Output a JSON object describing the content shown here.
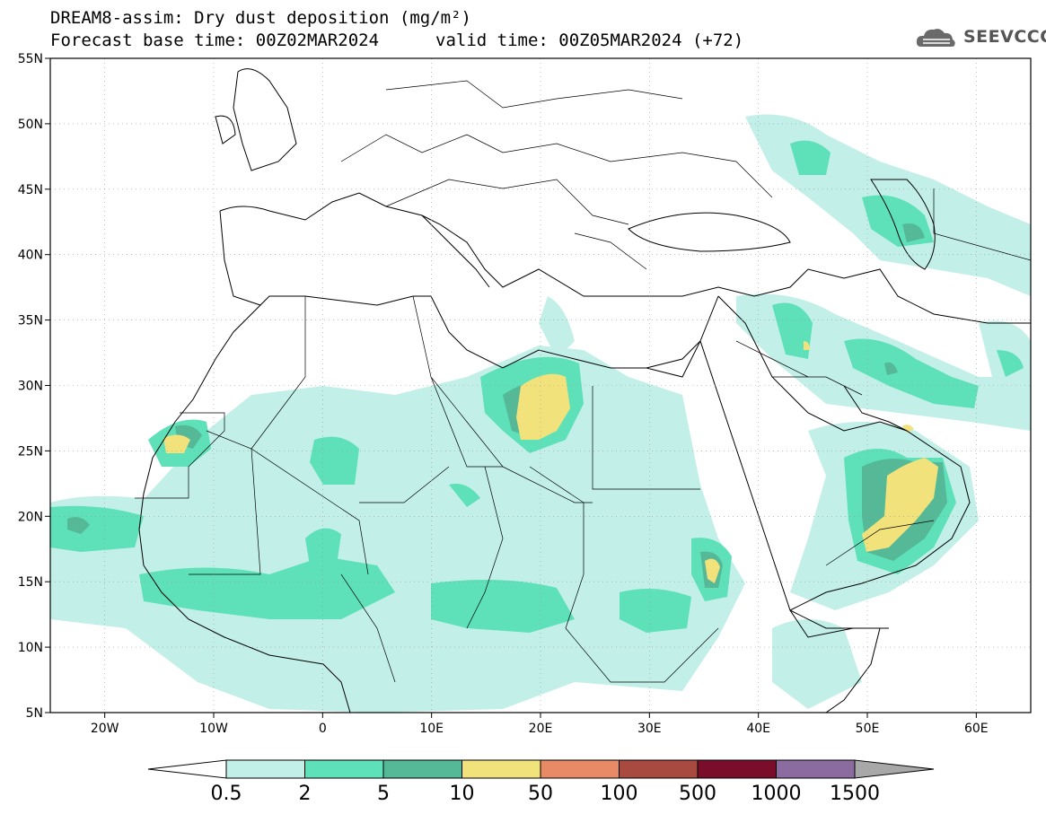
{
  "header": {
    "title_line1": "DREAM8-assim: Dry dust deposition (mg/m²)",
    "title_line2": "Forecast base time: 00Z02MAR2024",
    "title_line2b": "valid time: 00Z05MAR2024 (+72)",
    "logo_text": "SEEVCCC"
  },
  "map": {
    "lon_range": [
      -25,
      65
    ],
    "lat_range": [
      5,
      55
    ],
    "lat_labels": [
      "55N",
      "50N",
      "45N",
      "40N",
      "35N",
      "30N",
      "25N",
      "20N",
      "15N",
      "10N",
      "5N"
    ],
    "lat_values": [
      55,
      50,
      45,
      40,
      35,
      30,
      25,
      20,
      15,
      10,
      5
    ],
    "lon_labels": [
      "20W",
      "10W",
      "0",
      "10E",
      "20E",
      "30E",
      "40E",
      "50E",
      "60E"
    ],
    "lon_values": [
      -20,
      -10,
      0,
      10,
      20,
      30,
      40,
      50,
      60
    ]
  },
  "colorbar": {
    "labels": [
      "0.5",
      "2",
      "5",
      "10",
      "50",
      "100",
      "500",
      "1000",
      "1500"
    ],
    "colors": [
      "#c2f0e8",
      "#5ee0b8",
      "#55b896",
      "#f2e27c",
      "#e98a66",
      "#a84a40",
      "#7a0e2a",
      "#8c6ca0",
      "#a8a8a8"
    ],
    "under_color": "#ffffff"
  }
}
